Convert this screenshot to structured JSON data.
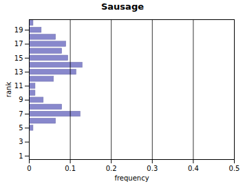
{
  "chart_data": {
    "type": "bar",
    "orientation": "horizontal",
    "title": "Sausage",
    "xlabel": "frequency",
    "ylabel": "rank",
    "y": [
      1,
      2,
      3,
      4,
      5,
      6,
      7,
      8,
      9,
      10,
      11,
      12,
      13,
      14,
      15,
      16,
      17,
      18,
      19,
      20
    ],
    "values": [
      0,
      0,
      0,
      0,
      0.01,
      0.065,
      0.125,
      0.08,
      0.035,
      0.015,
      0.015,
      0.06,
      0.115,
      0.13,
      0.095,
      0.08,
      0.09,
      0.065,
      0.03,
      0.01
    ],
    "color": "#8888cc",
    "xlim": [
      0,
      0.5
    ],
    "xticks": [
      0,
      0.1,
      0.2,
      0.3,
      0.4,
      0.5
    ],
    "ylim": [
      0.5,
      20.5
    ],
    "yticks": [
      1,
      3,
      5,
      7,
      9,
      11,
      13,
      15,
      17,
      19
    ],
    "grid": true
  }
}
